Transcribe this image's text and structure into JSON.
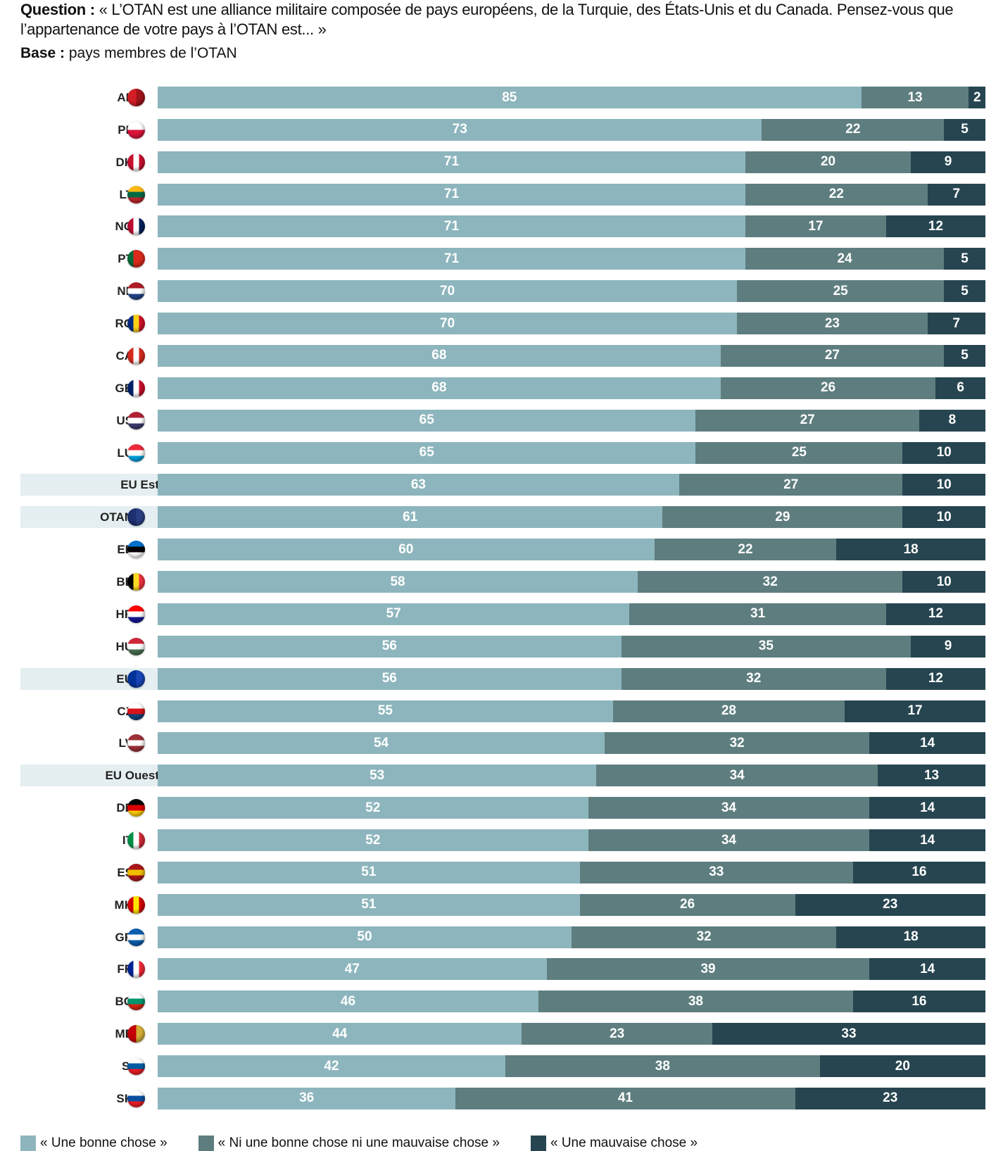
{
  "header": {
    "question_label": "Question :",
    "question_text": "« L’OTAN est une alliance militaire composée de pays européens, de la Turquie, des États-Unis et du Canada. Pensez-vous que l’appartenance de votre pays à l’OTAN est... »",
    "base_label": "Base :",
    "base_text": "pays membres de l’OTAN"
  },
  "colors": {
    "bonne": "#8db5bd",
    "ni": "#5e7d7f",
    "mauvaise": "#264550",
    "group_bg": "#e5eef0"
  },
  "chart_data": {
    "type": "bar",
    "orientation": "horizontal",
    "stacked": true,
    "xlim": [
      0,
      100
    ],
    "legend_placement": "bottom",
    "categories": [
      "AL",
      "PL",
      "DK",
      "LT",
      "NO",
      "PT",
      "NL",
      "RO",
      "CA",
      "GB",
      "US",
      "LU",
      "EU Est",
      "OTAN",
      "EE",
      "BE",
      "HR",
      "HU",
      "EU",
      "CZ",
      "LV",
      "EU Ouest",
      "DE",
      "IT",
      "ES",
      "MK",
      "GR",
      "FR",
      "BG",
      "ME",
      "SI",
      "SK"
    ],
    "highlighted_categories": [
      "EU Est",
      "OTAN",
      "EU",
      "EU Ouest"
    ],
    "series": [
      {
        "name": "« Une bonne chose »",
        "values": [
          85,
          73,
          71,
          71,
          71,
          71,
          70,
          70,
          68,
          68,
          65,
          65,
          63,
          61,
          60,
          58,
          57,
          56,
          56,
          55,
          54,
          53,
          52,
          52,
          51,
          51,
          50,
          47,
          46,
          44,
          42,
          36
        ]
      },
      {
        "name": "« Ni une bonne chose ni une mauvaise chose »",
        "values": [
          13,
          22,
          20,
          22,
          17,
          24,
          25,
          23,
          27,
          26,
          27,
          25,
          27,
          29,
          22,
          32,
          31,
          35,
          32,
          28,
          32,
          34,
          34,
          34,
          33,
          26,
          32,
          39,
          38,
          23,
          38,
          41
        ]
      },
      {
        "name": "« Une mauvaise chose »",
        "values": [
          2,
          5,
          9,
          7,
          12,
          5,
          5,
          7,
          5,
          6,
          8,
          10,
          10,
          10,
          18,
          10,
          12,
          9,
          12,
          17,
          14,
          13,
          14,
          14,
          16,
          23,
          18,
          14,
          16,
          33,
          20,
          23
        ]
      }
    ]
  },
  "flags": {
    "AL": [
      "#d21e26",
      "#a0141a"
    ],
    "PL": [
      "#ffffff",
      "#dc143c"
    ],
    "DK": [
      "#c8102e",
      "#ffffff",
      "#c8102e"
    ],
    "LT": [
      "#fdb913",
      "#006a44",
      "#c1272d"
    ],
    "NO": [
      "#ba0c2f",
      "#ffffff",
      "#00205b"
    ],
    "PT": [
      "#046a38",
      "#da291c",
      "#da291c"
    ],
    "NL": [
      "#ae1c28",
      "#ffffff",
      "#21468b"
    ],
    "RO": [
      "#002b7f",
      "#fcd116",
      "#ce1126"
    ],
    "CA": [
      "#d52b1e",
      "#ffffff",
      "#d52b1e"
    ],
    "GB": [
      "#012169",
      "#ffffff",
      "#c8102e"
    ],
    "US": [
      "#b22234",
      "#ffffff",
      "#3c3b6e"
    ],
    "LU": [
      "#ed2939",
      "#ffffff",
      "#00a1de"
    ],
    "OTAN": [
      "#1d2f6f",
      "#2b3f85"
    ],
    "EE": [
      "#0072ce",
      "#000000",
      "#ffffff"
    ],
    "BE": [
      "#000000",
      "#fdda24",
      "#ef3340"
    ],
    "HR": [
      "#ff0000",
      "#ffffff",
      "#171796"
    ],
    "HU": [
      "#ce2939",
      "#ffffff",
      "#477050"
    ],
    "EU": [
      "#003399",
      "#1a47b8"
    ],
    "CZ": [
      "#ffffff",
      "#d7141a",
      "#11457e"
    ],
    "LV": [
      "#9e3039",
      "#ffffff",
      "#9e3039"
    ],
    "DE": [
      "#000000",
      "#dd0000",
      "#ffce00"
    ],
    "IT": [
      "#009246",
      "#ffffff",
      "#ce2b37"
    ],
    "ES": [
      "#aa151b",
      "#f1bf00",
      "#aa151b"
    ],
    "MK": [
      "#d20000",
      "#ffe600",
      "#d20000"
    ],
    "GR": [
      "#0d5eaf",
      "#ffffff",
      "#0d5eaf"
    ],
    "FR": [
      "#002395",
      "#ffffff",
      "#ed2939"
    ],
    "BG": [
      "#ffffff",
      "#00966e",
      "#d62612"
    ],
    "ME": [
      "#c40308",
      "#d4af37"
    ],
    "SI": [
      "#ffffff",
      "#005da4",
      "#ed1c24"
    ],
    "SK": [
      "#ffffff",
      "#0b4ea2",
      "#ee1c25"
    ]
  },
  "flag_layout": {
    "vertical": [
      "DK",
      "NO",
      "PT",
      "RO",
      "CA",
      "GB",
      "BE",
      "IT",
      "FR",
      "MK",
      "ME",
      "AL",
      "OTAN",
      "EU"
    ]
  }
}
